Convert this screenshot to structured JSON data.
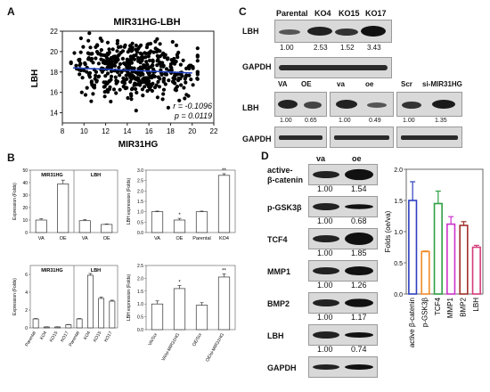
{
  "panel_labels": {
    "a": "A",
    "b": "B",
    "c": "C",
    "d": "D"
  },
  "panel_a": {
    "title": "MIR31HG-LBH",
    "xlabel": "MIR31HG",
    "ylabel": "LBH",
    "x_ticks": [
      "8",
      "10",
      "12",
      "14",
      "16",
      "18",
      "20",
      "22"
    ],
    "y_ticks": [
      "14",
      "16",
      "18",
      "20",
      "22"
    ],
    "r_text": "r = -0.1096",
    "p_text": "p = 0.0119"
  },
  "panel_b": {
    "b1": {
      "ylabel": "Expression (Folds)",
      "group1": "MIR31HG",
      "group2": "LBH",
      "ticks": [
        "VA",
        "OE",
        "VA",
        "OE"
      ],
      "y_ticks": [
        "0",
        "10",
        "20",
        "30",
        "40",
        "50"
      ]
    },
    "b2": {
      "ylabel": "LBH expression (Folds)",
      "ticks": [
        "VA",
        "OE",
        "Parental",
        "KO4"
      ],
      "y_ticks": [
        "0.0",
        "0.5",
        "1.0",
        "1.5",
        "2.0",
        "2.5",
        "3.0"
      ],
      "sig1": "*",
      "sig2": "**"
    },
    "b3": {
      "ylabel": "Expression (Folds)",
      "group1": "MIR31HG",
      "group2": "LBH",
      "ticks": [
        "Parental",
        "KO4",
        "KO15",
        "KO17",
        "Parental",
        "KO4",
        "KO15",
        "KO17"
      ],
      "y_ticks": [
        "0",
        "2",
        "4",
        "6"
      ]
    },
    "b4": {
      "ylabel": "LBH expression (Folds)",
      "ticks": [
        "VA/Scr",
        "VA/si-MIR31HG",
        "OE/Scr",
        "OE/si-MIR31HG"
      ],
      "y_ticks": [
        "0.0",
        "0.5",
        "1.0",
        "1.5",
        "2.0",
        "2.5"
      ],
      "sig1": "*",
      "sig2": "**"
    }
  },
  "panel_c": {
    "top_headers": [
      "Parental",
      "KO4",
      "KO15",
      "KO17"
    ],
    "top_values": [
      "1.00",
      "2.53",
      "1.52",
      "3.43"
    ],
    "row_lbh": "LBH",
    "row_gapdh": "GAPDH",
    "bottom_headers": [
      "VA",
      "OE",
      "va",
      "oe",
      "Scr",
      "si-MIR31HG"
    ],
    "bottom_values": [
      "1.00",
      "0.65",
      "1.00",
      "0.49",
      "1.00",
      "1.35"
    ]
  },
  "panel_d": {
    "col_headers": [
      "va",
      "oe"
    ],
    "rows": [
      {
        "label": "active-\nβ-catenin",
        "l1": "active-",
        "l2": "β-catenin",
        "v1": "1.00",
        "v2": "1.54"
      },
      {
        "label": "p-GSK3β",
        "v1": "1.00",
        "v2": "0.68"
      },
      {
        "label": "TCF4",
        "v1": "1.00",
        "v2": "1.85"
      },
      {
        "label": "MMP1",
        "v1": "1.00",
        "v2": "1.26"
      },
      {
        "label": "BMP2",
        "v1": "1.00",
        "v2": "1.17"
      },
      {
        "label": "LBH",
        "v1": "1.00",
        "v2": "0.74"
      },
      {
        "label": "GAPDH",
        "v1": "",
        "v2": ""
      }
    ]
  },
  "chart_data": [
    {
      "type": "scatter",
      "title": "MIR31HG-LBH",
      "xlabel": "MIR31HG",
      "ylabel": "LBH",
      "xlim": [
        8,
        22
      ],
      "ylim": [
        13,
        22
      ],
      "trendline": {
        "x": [
          9,
          20
        ],
        "y": [
          18.4,
          17.9
        ],
        "color": "#1f3fbf"
      },
      "annotation": [
        "r = -0.1096",
        "p = 0.0119"
      ]
    },
    {
      "type": "bar",
      "ylabel": "Expression (Folds)",
      "categories": [
        "VA",
        "OE",
        "VA",
        "OE"
      ],
      "groups": [
        "MIR31HG",
        "LBH"
      ],
      "values": [
        10,
        39,
        9.5,
        6.5
      ],
      "errors": [
        1,
        3,
        0.8,
        0.4
      ],
      "ylim": [
        0,
        50
      ]
    },
    {
      "type": "bar",
      "ylabel": "LBH expression (Folds)",
      "categories": [
        "VA",
        "OE",
        "Parental",
        "KO4"
      ],
      "values": [
        1.0,
        0.6,
        1.0,
        2.75
      ],
      "errors": [
        0.03,
        0.08,
        0.03,
        0.08
      ],
      "ylim": [
        0,
        3
      ]
    },
    {
      "type": "bar",
      "ylabel": "Expression (Folds)",
      "categories": [
        "Parental",
        "KO4",
        "KO15",
        "KO17",
        "Parental",
        "KO4",
        "KO15",
        "KO17"
      ],
      "groups": [
        "MIR31HG",
        "LBH"
      ],
      "values": [
        1.0,
        0.1,
        0.1,
        0.35,
        1.0,
        5.9,
        3.3,
        3.0
      ],
      "errors": [
        0.05,
        0.02,
        0.02,
        0.03,
        0.05,
        0.2,
        0.15,
        0.1
      ],
      "ylim": [
        0,
        7
      ]
    },
    {
      "type": "bar",
      "ylabel": "LBH expression (Folds)",
      "categories": [
        "VA/Scr",
        "VA/si-MIR31HG",
        "OE/Scr",
        "OE/si-MIR31HG"
      ],
      "values": [
        1.0,
        1.6,
        0.95,
        2.05
      ],
      "errors": [
        0.12,
        0.12,
        0.1,
        0.12
      ],
      "ylim": [
        0,
        2.5
      ]
    },
    {
      "type": "bar",
      "ylabel": "Folds (oe/va)",
      "categories": [
        "active β-catenin",
        "p-GSK3β",
        "TCF4",
        "MMP1",
        "BMP2",
        "LBH"
      ],
      "values": [
        1.5,
        0.68,
        1.45,
        1.12,
        1.1,
        0.75
      ],
      "errors": [
        0.3,
        0.01,
        0.2,
        0.12,
        0.06,
        0.03
      ],
      "colors": [
        "#2d3fbf",
        "#f28c28",
        "#2ea043",
        "#cc33cc",
        "#a0302a",
        "#d63a7a"
      ],
      "ylim": [
        0,
        2.0
      ],
      "y_ticks": [
        "0.0",
        "0.5",
        "1.0",
        "1.5",
        "2.0"
      ]
    }
  ]
}
